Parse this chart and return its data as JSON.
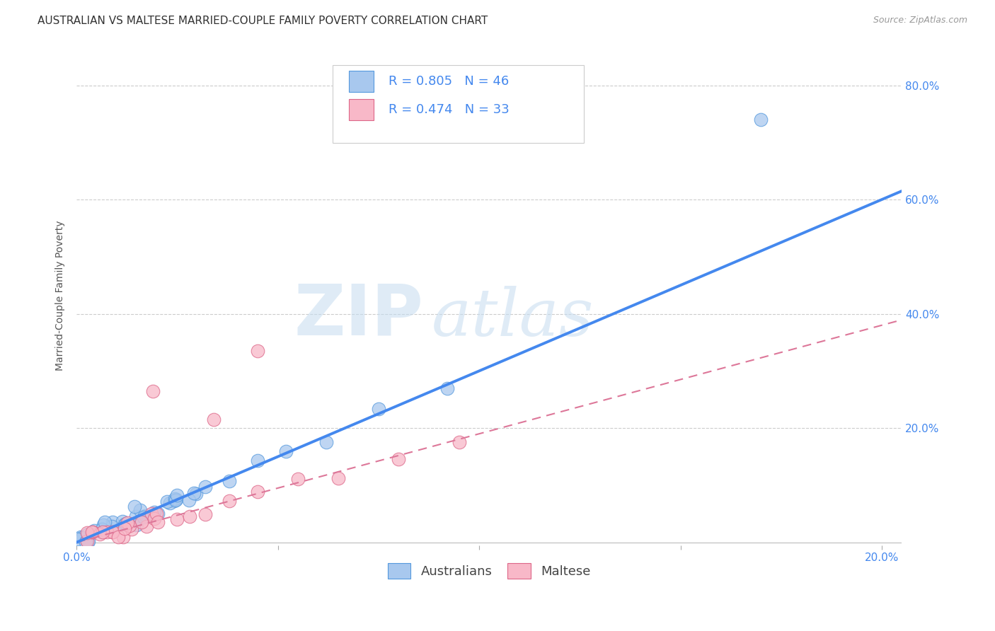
{
  "title": "AUSTRALIAN VS MALTESE MARRIED-COUPLE FAMILY POVERTY CORRELATION CHART",
  "source": "Source: ZipAtlas.com",
  "ylabel": "Married-Couple Family Poverty",
  "watermark_zip": "ZIP",
  "watermark_atlas": "atlas",
  "background_color": "#ffffff",
  "xlim": [
    0.0,
    0.205
  ],
  "ylim": [
    -0.005,
    0.87
  ],
  "australian_fill": "#A8C8EE",
  "australian_edge": "#5599DD",
  "maltese_fill": "#F8B8C8",
  "maltese_edge": "#DD6688",
  "aus_line_color": "#4488EE",
  "mal_line_color": "#DD7799",
  "grid_color": "#CCCCCC",
  "tick_color": "#4488EE",
  "ylabel_color": "#555555",
  "aus_reg_slope": 3.0,
  "aus_reg_intercept": 0.0,
  "mal_reg_slope": 1.9,
  "mal_reg_intercept": 0.0,
  "R_australian": 0.805,
  "N_australian": 46,
  "R_maltese": 0.474,
  "N_maltese": 33,
  "title_fontsize": 11,
  "axis_label_fontsize": 10,
  "tick_fontsize": 11,
  "legend_fontsize": 13,
  "source_fontsize": 9
}
